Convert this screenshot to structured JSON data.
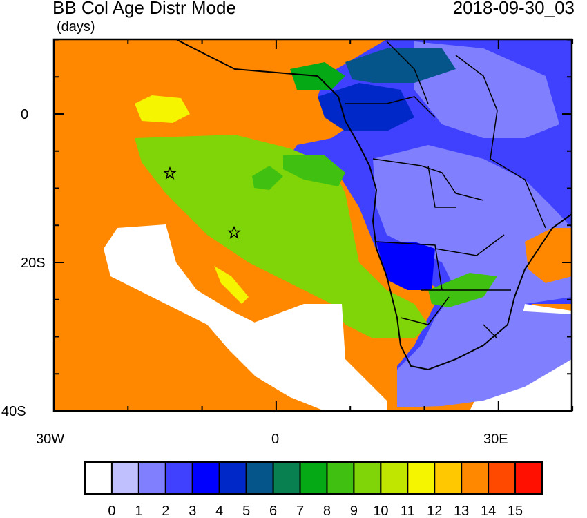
{
  "header": {
    "title": "BB Col Age Distr Mode",
    "units": "(days)",
    "datetime": "2018-09-30_03"
  },
  "axes": {
    "lon_labels": [
      "30W",
      "0",
      "30E"
    ],
    "lat_labels": [
      "0",
      "20S",
      "40S"
    ],
    "lon_range": [
      -30,
      40
    ],
    "lat_range": [
      -40,
      10
    ]
  },
  "markers": [
    {
      "name": "star",
      "lon": -14.4,
      "lat": -7.9
    },
    {
      "name": "star",
      "lon": -5.7,
      "lat": -15.9
    }
  ],
  "colorbar": {
    "labels": [
      "0",
      "1",
      "2",
      "3",
      "4",
      "5",
      "6",
      "7",
      "8",
      "9",
      "10",
      "11",
      "12",
      "13",
      "14",
      "15"
    ],
    "colors": [
      "#ffffff",
      "#c0c0ff",
      "#8080ff",
      "#4040ff",
      "#0000ff",
      "#0028c8",
      "#05558a",
      "#088050",
      "#05a815",
      "#40c010",
      "#80d508",
      "#c0e600",
      "#f5f500",
      "#ffc800",
      "#ff8800",
      "#ff4800",
      "#ff1000"
    ]
  }
}
